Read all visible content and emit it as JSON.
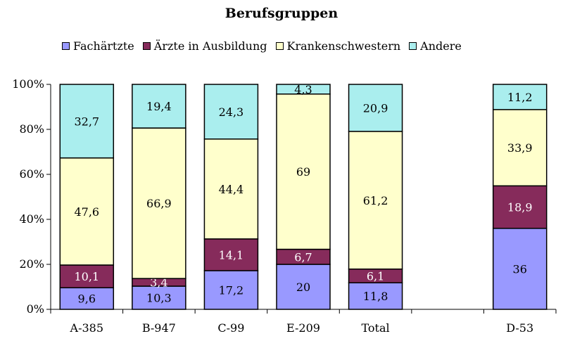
{
  "chart_data": {
    "type": "bar",
    "stacked": true,
    "normalized": true,
    "title": "Berufsgruppen",
    "categories": [
      "A-385",
      "B-947",
      "C-99",
      "E-209",
      "Total",
      "",
      "D-53"
    ],
    "series": [
      {
        "name": "Fachärtzte",
        "color": "#9999ff",
        "values": [
          9.6,
          10.3,
          17.2,
          20,
          11.8,
          null,
          36
        ]
      },
      {
        "name": "Ärzte in Ausbildung",
        "color": "#862b5b",
        "values": [
          10.1,
          3.4,
          14.1,
          6.7,
          6.1,
          null,
          18.9
        ]
      },
      {
        "name": "Krankenschwestern",
        "color": "#ffffcc",
        "values": [
          47.6,
          66.9,
          44.4,
          69,
          61.2,
          null,
          33.9
        ]
      },
      {
        "name": "Andere",
        "color": "#aaeeee",
        "values": [
          32.7,
          19.4,
          24.3,
          4.3,
          20.9,
          null,
          11.2
        ]
      }
    ],
    "yticks": [
      "0%",
      "20%",
      "40%",
      "60%",
      "80%",
      "100%"
    ],
    "ylim": [
      0,
      100
    ],
    "legend_position": "top",
    "grid": false
  }
}
